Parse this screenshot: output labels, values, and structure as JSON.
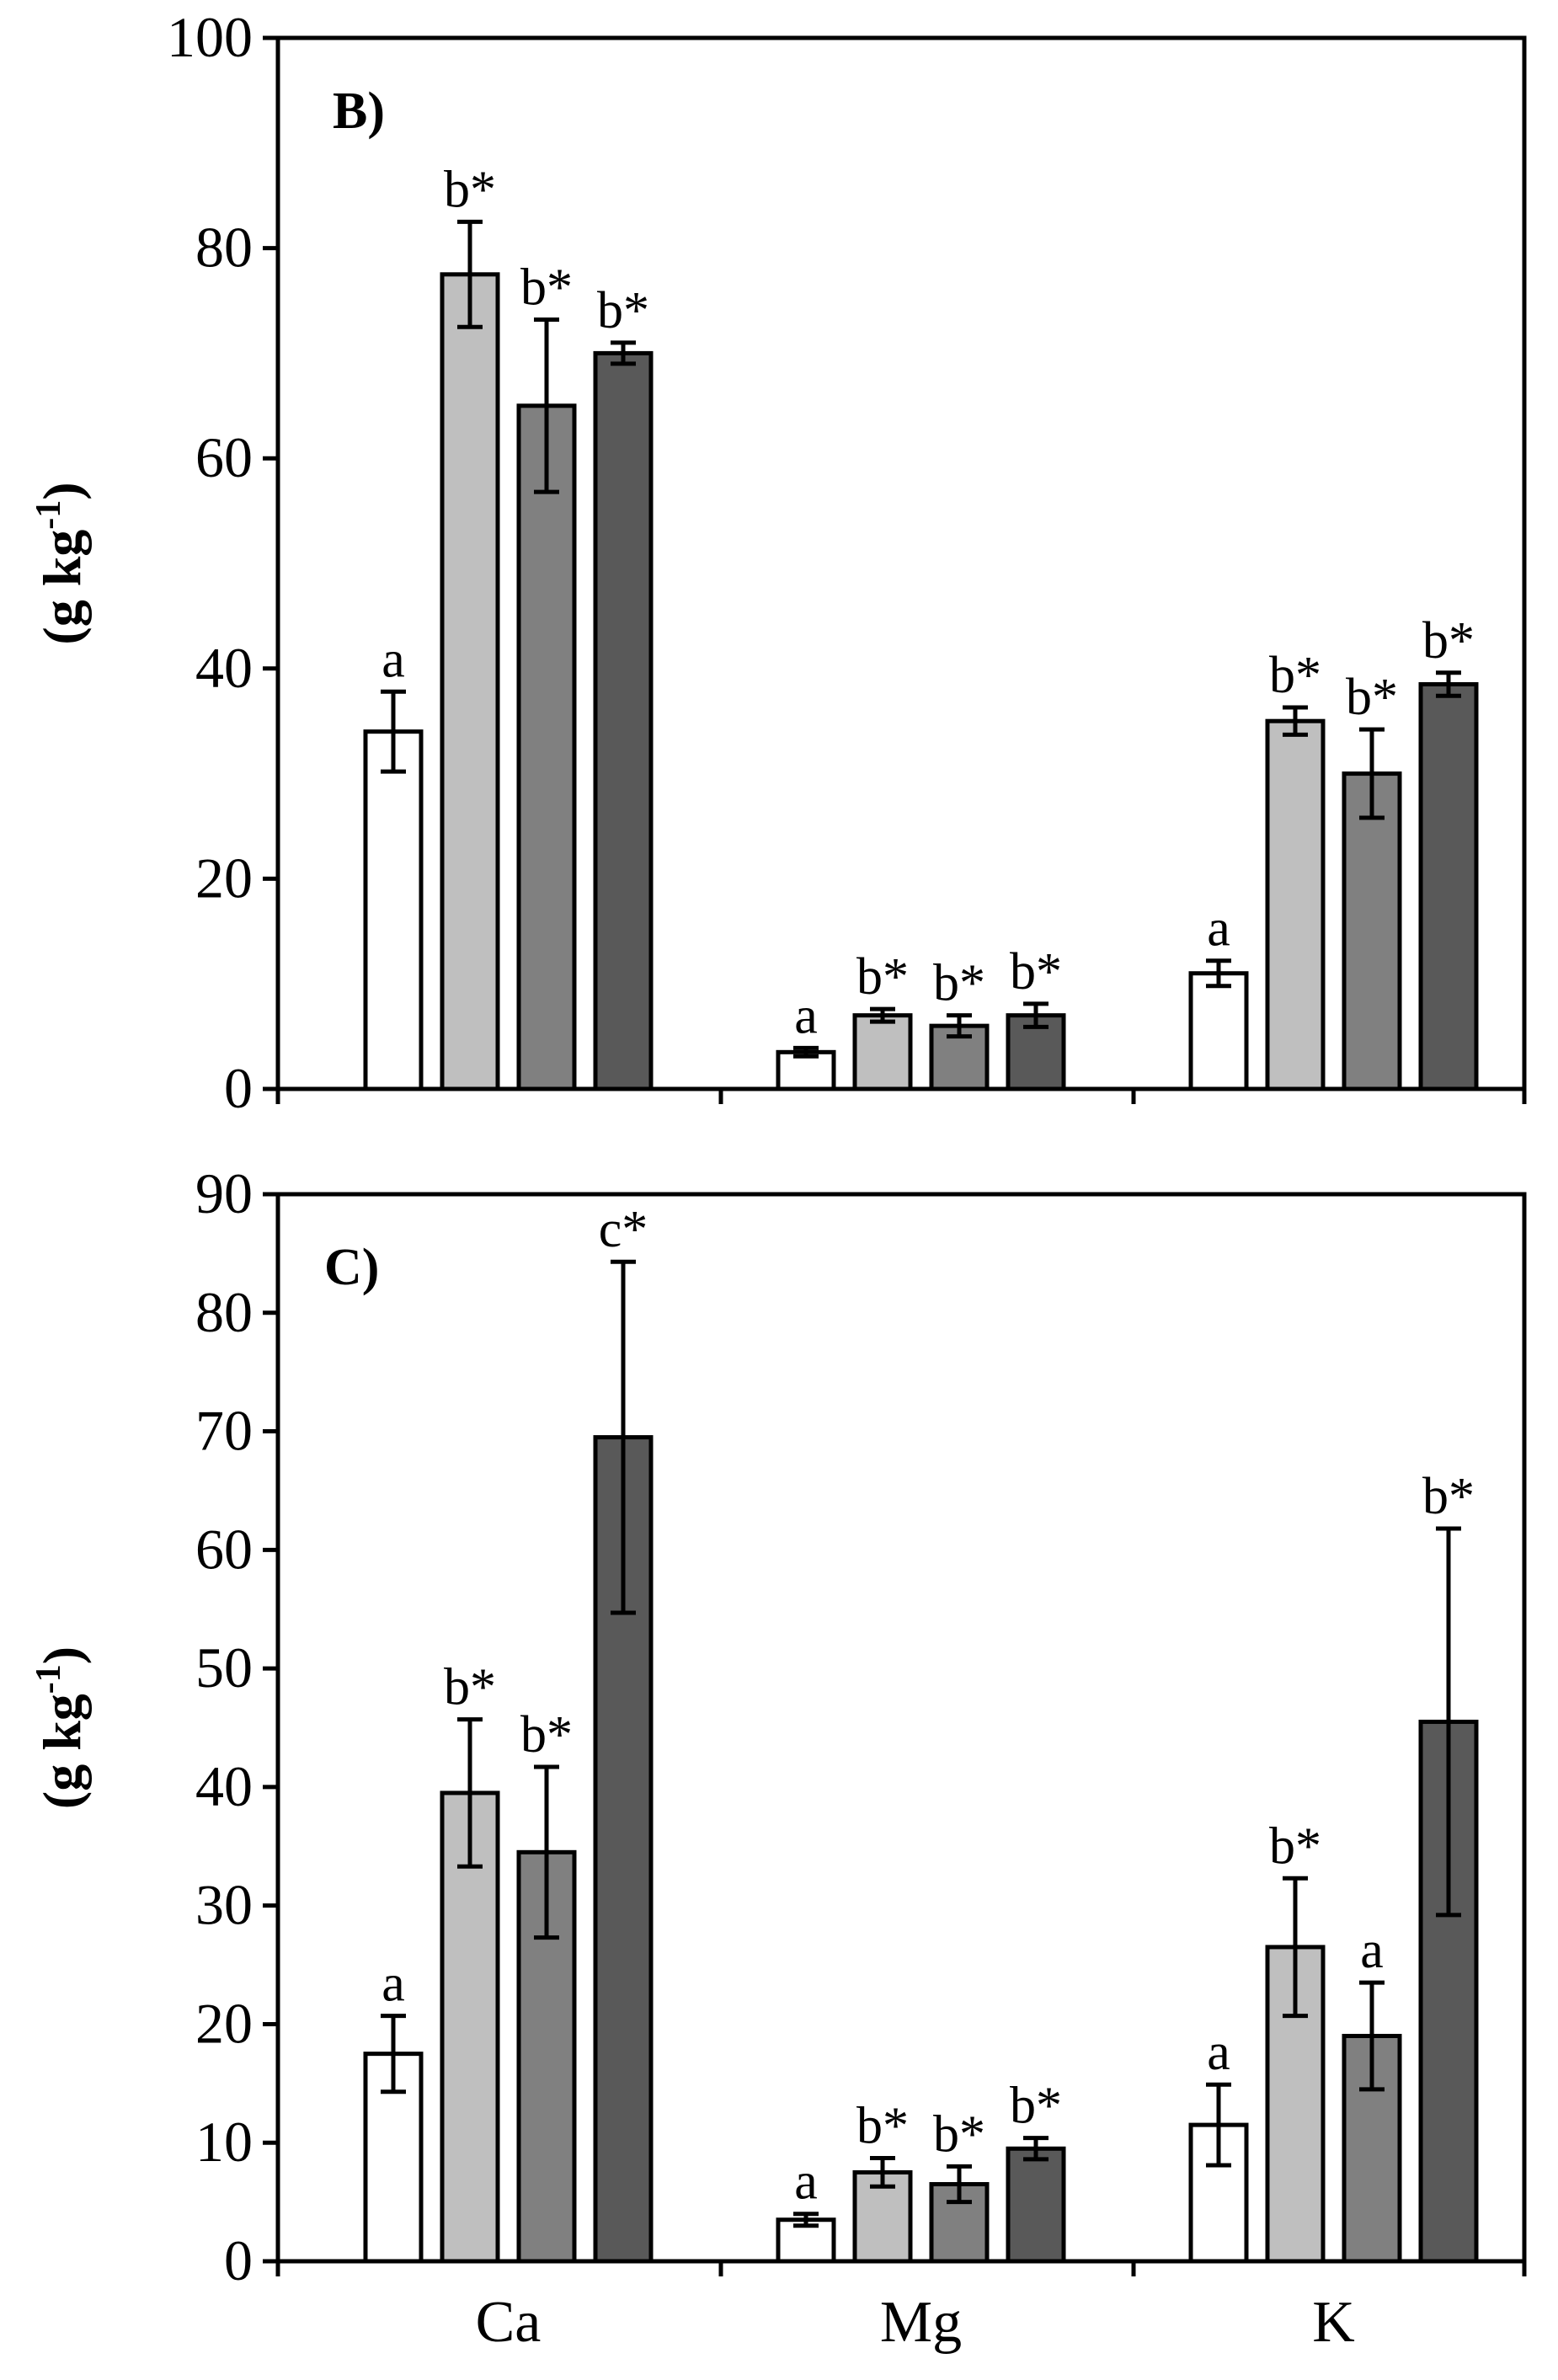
{
  "chart_data": [
    {
      "type": "bar",
      "panel_label": "B)",
      "ylabel": "(g kg-1)",
      "ylabel_base": "(g kg",
      "ylabel_sup": "-1",
      "ylabel_end": ")",
      "ylim": [
        0,
        100
      ],
      "yticks": [
        0,
        20,
        40,
        60,
        80,
        100
      ],
      "categories": [
        "Ca",
        "Mg",
        "K"
      ],
      "show_category_labels": false,
      "series": [
        {
          "name": "series-1",
          "color": "#ffffff",
          "values": [
            34,
            3.5,
            11
          ],
          "errors": [
            3.8,
            0.4,
            1.2
          ],
          "labels": [
            "a",
            "a",
            "a"
          ]
        },
        {
          "name": "series-2",
          "color": "#bfbfbf",
          "values": [
            77.5,
            7,
            35
          ],
          "errors": [
            5,
            0.6,
            1.3
          ],
          "labels": [
            "b*",
            "b*",
            "b*"
          ]
        },
        {
          "name": "series-3",
          "color": "#808080",
          "values": [
            65,
            6,
            30
          ],
          "errors": [
            8.2,
            1,
            4.2
          ],
          "labels": [
            "b*",
            "b*",
            "b*"
          ]
        },
        {
          "name": "series-4",
          "color": "#595959",
          "values": [
            70,
            7,
            38.5
          ],
          "errors": [
            1,
            1.1,
            1.1
          ],
          "labels": [
            "b*",
            "b*",
            "b*"
          ]
        }
      ]
    },
    {
      "type": "bar",
      "panel_label": "C)",
      "ylabel": "(g kg-1)",
      "ylabel_base": "(g kg",
      "ylabel_sup": "-1",
      "ylabel_end": ")",
      "ylim": [
        0,
        90
      ],
      "yticks": [
        0,
        10,
        20,
        30,
        40,
        50,
        60,
        70,
        80,
        90
      ],
      "categories": [
        "Ca",
        "Mg",
        "K"
      ],
      "show_category_labels": true,
      "series": [
        {
          "name": "series-1",
          "color": "#ffffff",
          "values": [
            17.5,
            3.5,
            11.5
          ],
          "errors": [
            3.2,
            0.5,
            3.4
          ],
          "labels": [
            "a",
            "a",
            "a"
          ]
        },
        {
          "name": "series-2",
          "color": "#bfbfbf",
          "values": [
            39.5,
            7.5,
            26.5
          ],
          "errors": [
            6.2,
            1.2,
            5.8
          ],
          "labels": [
            "b*",
            "b*",
            "b*"
          ]
        },
        {
          "name": "series-3",
          "color": "#808080",
          "values": [
            34.5,
            6.5,
            19
          ],
          "errors": [
            7.2,
            1.5,
            4.5
          ],
          "labels": [
            "b*",
            "b*",
            "a"
          ]
        },
        {
          "name": "series-4",
          "color": "#595959",
          "values": [
            69.5,
            9.5,
            45.5
          ],
          "errors": [
            14.8,
            0.9,
            16.3
          ],
          "labels": [
            "c*",
            "b*",
            "b*"
          ]
        }
      ]
    }
  ]
}
